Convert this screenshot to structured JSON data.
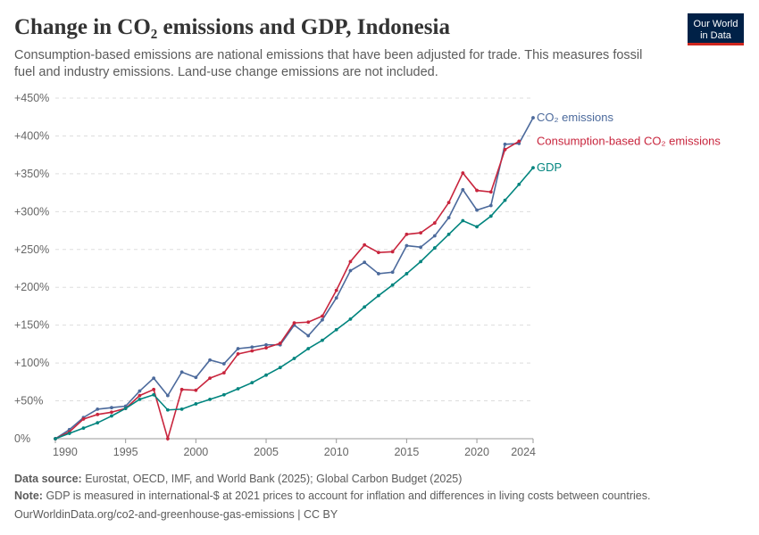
{
  "chart_data": {
    "type": "line",
    "title": "Change in CO₂ emissions and GDP, Indonesia",
    "subtitle": [
      "Consumption-based emissions are national emissions that have been adjusted for trade. This measures fossil",
      "fuel and industry emissions. Land-use change emissions are not included."
    ],
    "logo": [
      "Our World",
      "in Data"
    ],
    "x": [
      1990,
      1991,
      1992,
      1993,
      1994,
      1995,
      1996,
      1997,
      1998,
      1999,
      2000,
      2001,
      2002,
      2003,
      2004,
      2005,
      2006,
      2007,
      2008,
      2009,
      2010,
      2011,
      2012,
      2013,
      2014,
      2015,
      2016,
      2017,
      2018,
      2019,
      2020,
      2021,
      2022,
      2023,
      2024
    ],
    "xlim": [
      1990,
      2024
    ],
    "xticks": [
      1990,
      1995,
      2000,
      2005,
      2010,
      2015,
      2020,
      2024
    ],
    "ylim": [
      0,
      450
    ],
    "yticks": [
      {
        "value": 0,
        "label": "0%"
      },
      {
        "value": 50,
        "label": "+50%"
      },
      {
        "value": 100,
        "label": "+100%"
      },
      {
        "value": 150,
        "label": "+150%"
      },
      {
        "value": 200,
        "label": "+200%"
      },
      {
        "value": 250,
        "label": "+250%"
      },
      {
        "value": 300,
        "label": "+300%"
      },
      {
        "value": 350,
        "label": "+350%"
      },
      {
        "value": 400,
        "label": "+400%"
      },
      {
        "value": 450,
        "label": "+450%"
      }
    ],
    "grid": true,
    "series": [
      {
        "name": "CO₂ emissions",
        "color": "#4c6a9c",
        "values": [
          0,
          12,
          28,
          39,
          41,
          43,
          63,
          80,
          57,
          88,
          81,
          104,
          99,
          119,
          121,
          124,
          124,
          150,
          136,
          157,
          186,
          222,
          233,
          218,
          220,
          255,
          253,
          268,
          292,
          329,
          302,
          308,
          389,
          390,
          424
        ]
      },
      {
        "name": "Consumption-based CO₂ emissions",
        "color": "#c8253d",
        "values": [
          0,
          9,
          26,
          32,
          35,
          40,
          57,
          65,
          0,
          65,
          64,
          80,
          87,
          112,
          116,
          120,
          126,
          153,
          154,
          162,
          196,
          234,
          256,
          246,
          247,
          270,
          272,
          285,
          312,
          351,
          328,
          326,
          382,
          393,
          null
        ]
      },
      {
        "name": "GDP",
        "color": "#00847e",
        "values": [
          0,
          7,
          14,
          21,
          30,
          40,
          52,
          58,
          38,
          39,
          46,
          52,
          58,
          66,
          74,
          84,
          94,
          106,
          119,
          130,
          144,
          158,
          174,
          189,
          203,
          218,
          234,
          252,
          270,
          288,
          280,
          294,
          315,
          336,
          358
        ]
      }
    ],
    "footer": {
      "source_label": "Data source:",
      "source": "Eurostat, OECD, IMF, and World Bank (2025); Global Carbon Budget (2025)",
      "note_label": "Note:",
      "note": "GDP is measured in international-$ at 2021 prices to account for inflation and differences in living costs between countries.",
      "url": "OurWorldinData.org/co2-and-greenhouse-gas-emissions | CC BY"
    }
  }
}
